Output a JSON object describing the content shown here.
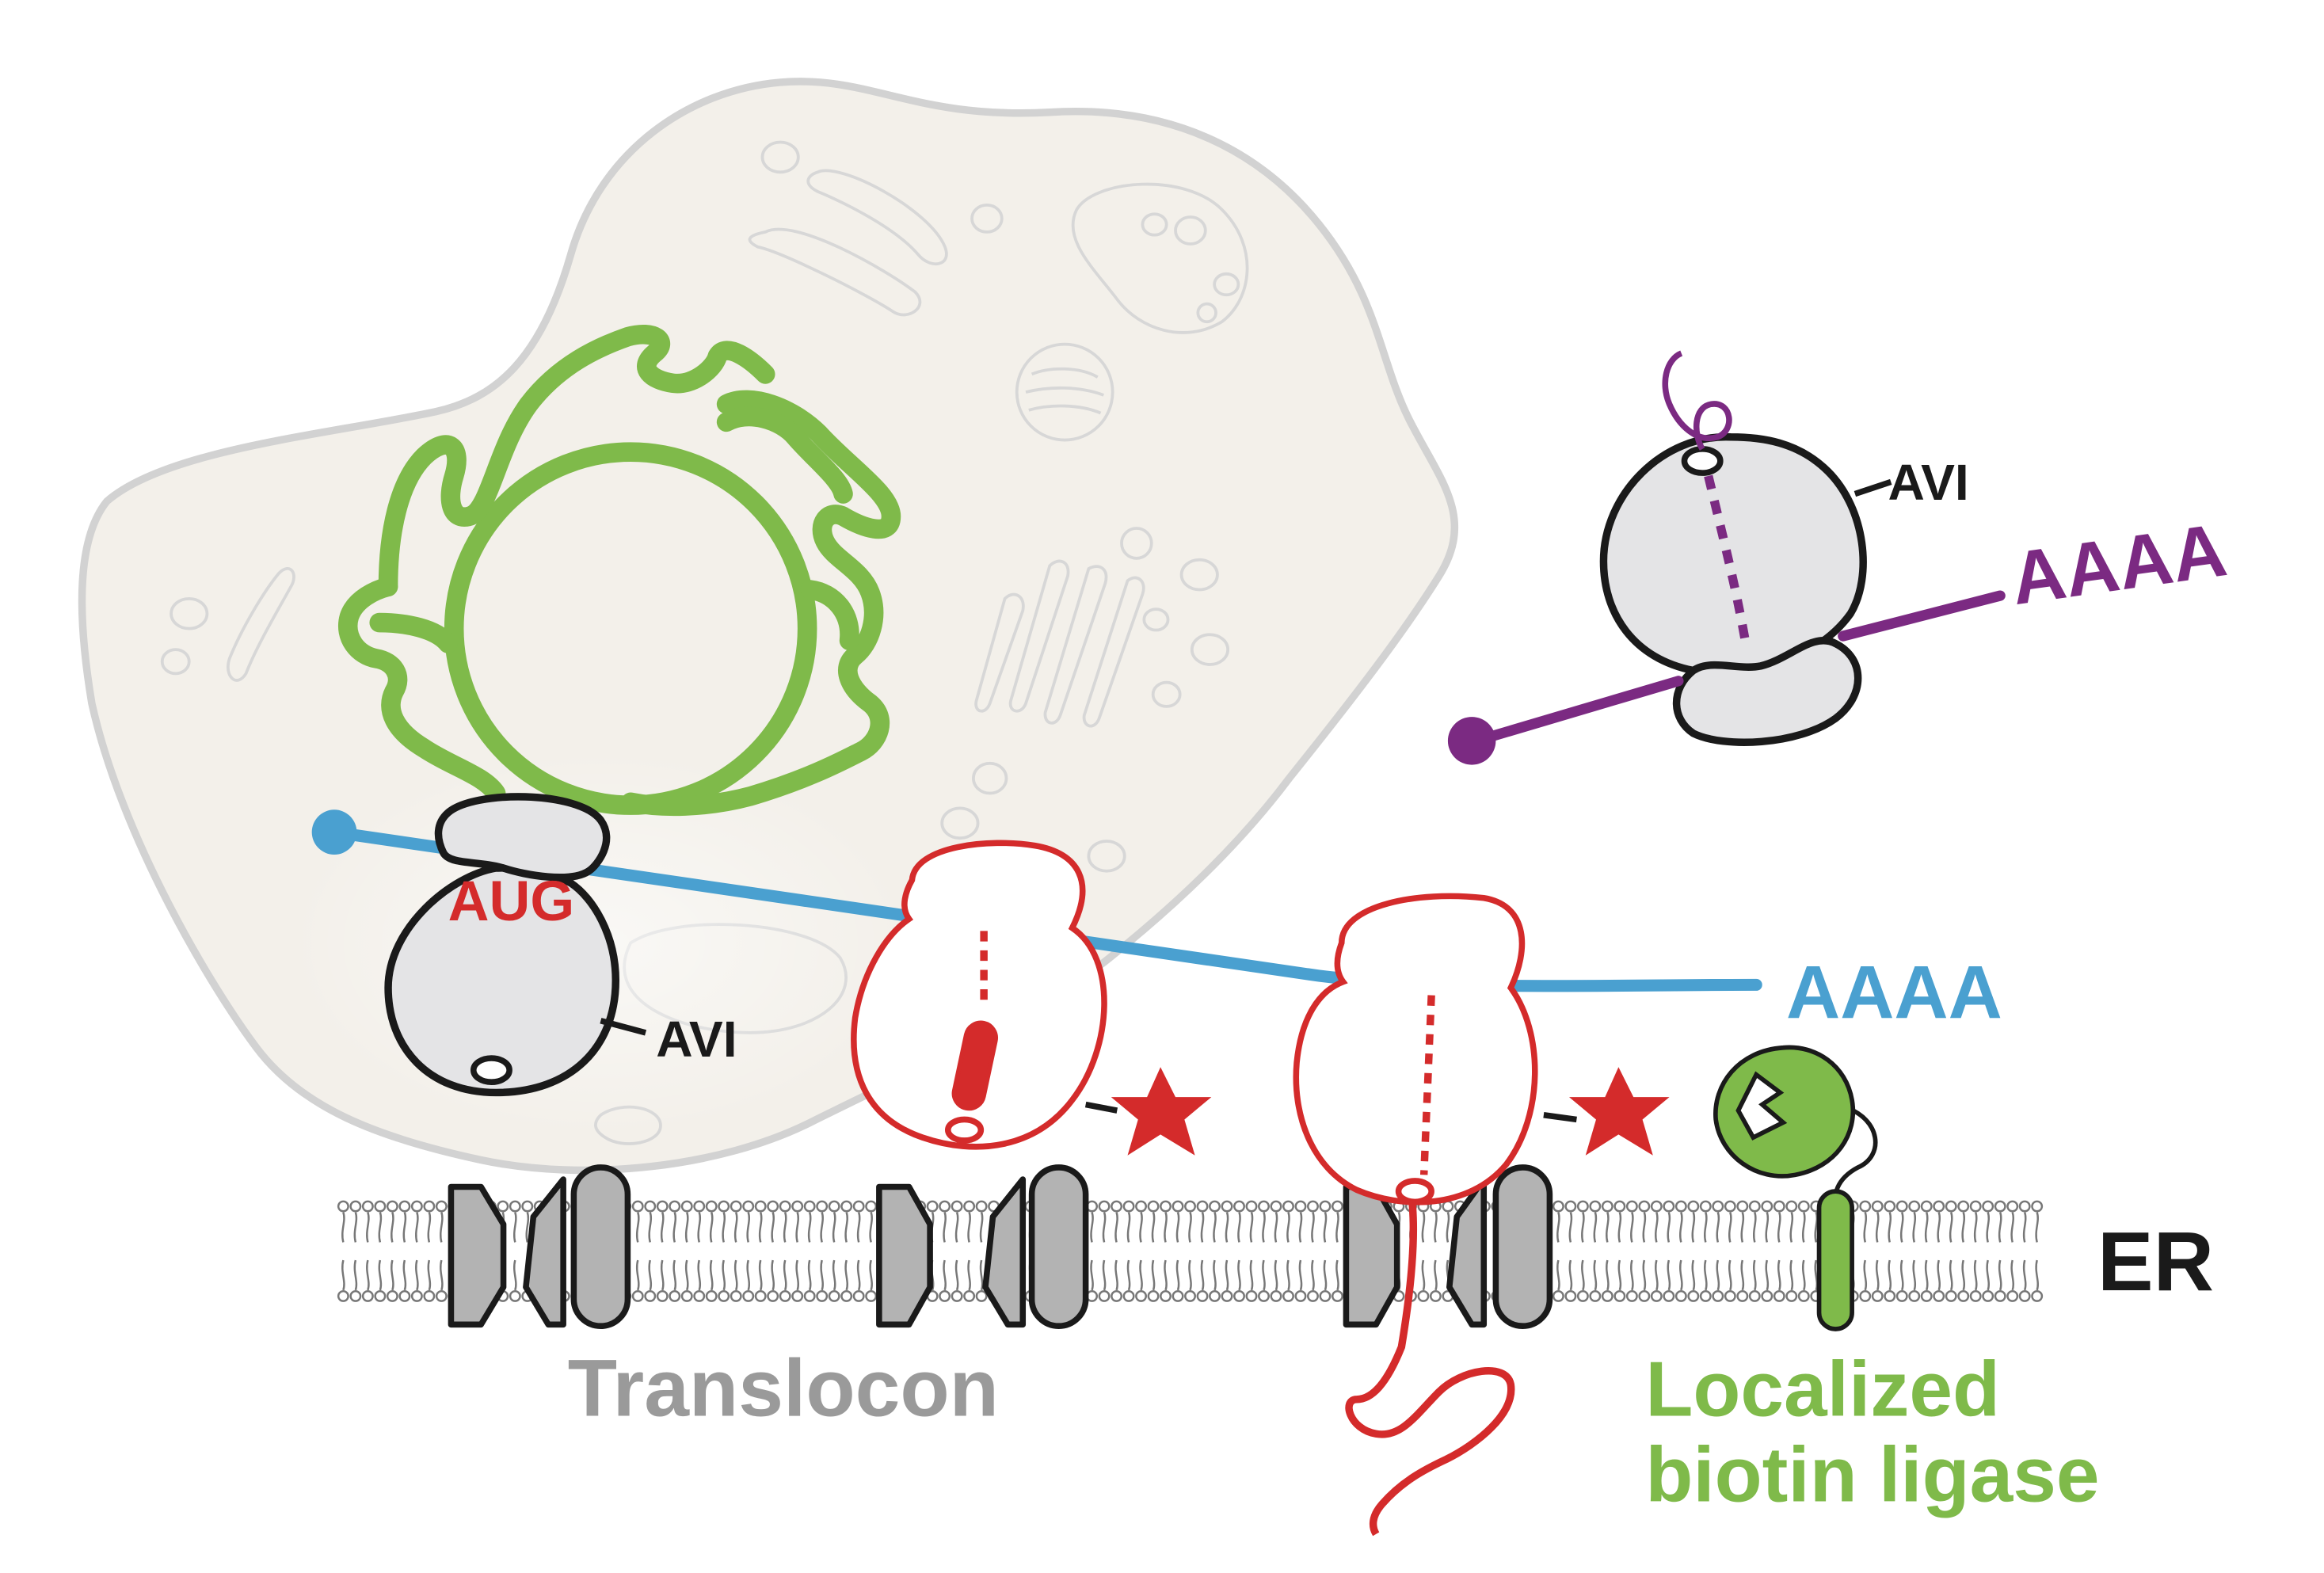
{
  "labels": {
    "aug": "AUG",
    "avi_left": "AVI",
    "avi_right": "AVI",
    "polya_blue": "AAAA",
    "polya_purple": "AAAA",
    "er": "ER",
    "translocon": "Translocon",
    "ligase_line1": "Localized",
    "ligase_line2": "biotin ligase"
  },
  "colors": {
    "cell_fill": "#f3f0ea",
    "cell_outline": "#d2d2d2",
    "organelle_outline": "#d7d7d7",
    "nucleus_green": "#7fba4a",
    "mrna_blue": "#4aa0d0",
    "mrna_purple": "#7b2a82",
    "labeled_red": "#d42b2b",
    "ribosome_gray": "#e4e4e6",
    "translocon_gray": "#b3b3b3",
    "membrane_gray": "#777777",
    "label_gray": "#9a9a9a",
    "ligase_green": "#7fba4a",
    "black": "#1a1a1a"
  }
}
